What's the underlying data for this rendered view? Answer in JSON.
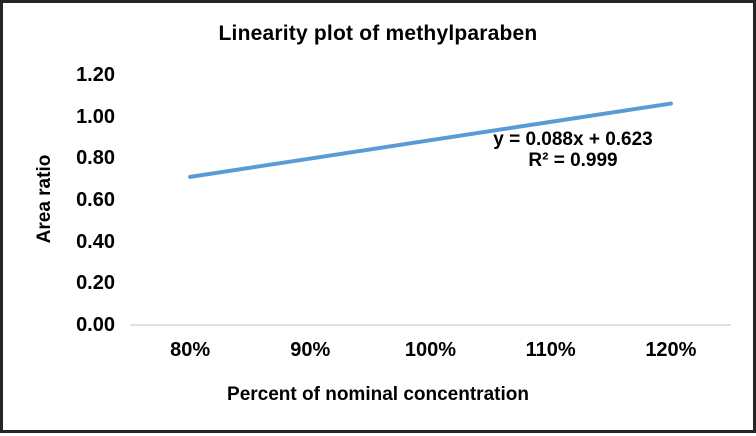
{
  "chart_data": {
    "type": "line",
    "title": "Linearity plot of methylparaben",
    "xlabel": "Percent of nominal concentration",
    "ylabel": "Area ratio",
    "categories": [
      "80%",
      "90%",
      "100%",
      "110%",
      "120%"
    ],
    "series": [
      {
        "name": "Area ratio",
        "values": [
          0.711,
          0.799,
          0.887,
          0.975,
          1.063
        ]
      }
    ],
    "y_ticks": [
      "0.00",
      "0.20",
      "0.40",
      "0.60",
      "0.80",
      "1.00",
      "1.20"
    ],
    "ylim": [
      0,
      1.2
    ],
    "grid": "off",
    "legend": "none",
    "annotation": {
      "equation": "y = 0.088x + 0.623",
      "r_squared": "R² = 0.999"
    },
    "colors": {
      "line": "#5B9BD5",
      "axis_line": "#D6D6D6",
      "text": "#000000",
      "frame_border": "#262626"
    }
  }
}
